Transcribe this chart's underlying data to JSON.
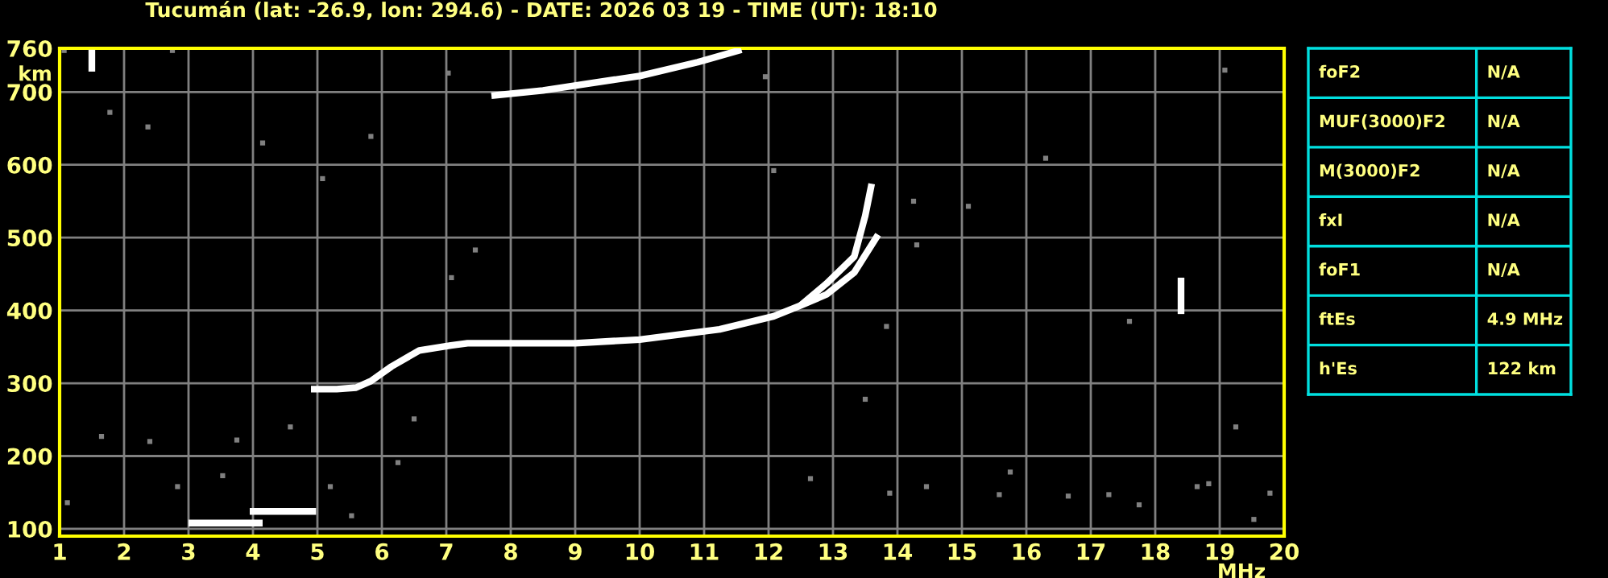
{
  "chart_data": [
    {
      "type": "line",
      "title": "Tucumán (lat: -26.9, lon: 294.6) - DATE: 2026 03 19 - TIME (UT): 18:10",
      "xlabel": "MHz",
      "ylabel": "km",
      "xlim": [
        1,
        20
      ],
      "ylim": [
        90,
        760
      ],
      "xticks": [
        1,
        2,
        3,
        4,
        5,
        6,
        7,
        8,
        9,
        10,
        11,
        12,
        13,
        14,
        15,
        16,
        17,
        18,
        19,
        20
      ],
      "yticks": [
        100,
        200,
        300,
        400,
        500,
        600,
        700,
        760
      ],
      "grid": true,
      "legend": false,
      "series": [
        {
          "color": "#ffffff",
          "x": [
            3.0,
            3.5,
            4.15
          ],
          "values": [
            108,
            108,
            108
          ]
        },
        {
          "color": "#ffffff",
          "x": [
            3.95,
            4.5,
            4.98
          ],
          "values": [
            124,
            124,
            124
          ]
        },
        {
          "color": "#ffffff",
          "x": [
            4.9,
            5.3,
            5.6,
            5.83,
            6.15,
            6.58,
            7.07,
            7.33,
            8.0,
            9.0,
            10.0,
            11.24,
            12.08,
            12.5,
            12.9,
            13.33,
            13.7
          ],
          "values": [
            292,
            292,
            294,
            303,
            323,
            345,
            352,
            355,
            355,
            355,
            360,
            374,
            392,
            407,
            422,
            452,
            504
          ]
        },
        {
          "color": "#ffffff",
          "x": [
            12.5,
            12.9,
            13.33,
            13.5,
            13.6
          ],
          "values": [
            407,
            437,
            474,
            530,
            574
          ]
        },
        {
          "color": "#ffffff",
          "x": [
            7.7,
            8.5,
            9.24,
            10.0,
            10.9,
            11.58
          ],
          "values": [
            695,
            702,
            712,
            722,
            741,
            758
          ]
        },
        {
          "color": "#ffffff",
          "x": [
            1.5,
            1.5
          ],
          "values": [
            728,
            758
          ]
        },
        {
          "color": "#ffffff",
          "x": [
            18.4,
            18.4
          ],
          "values": [
            395,
            445
          ]
        },
        {
          "type": "scatter",
          "marker": "square",
          "color": "#808080",
          "x": [
            1.07,
            2.75,
            1.78,
            2.37,
            4.15,
            5.83,
            7.03,
            11.95,
            12.08,
            5.08,
            7.08,
            7.45,
            14.25,
            14.3,
            13.83,
            13.5,
            12.65,
            13.88,
            6.5,
            6.25,
            5.2,
            1.65,
            2.4,
            3.75,
            4.58,
            1.12,
            2.83,
            3.53,
            5.53,
            14.45,
            15.58,
            16.65,
            17.28,
            17.75,
            18.65,
            18.83,
            19.53,
            19.78,
            15.75,
            19.25,
            19.08,
            16.3,
            17.6,
            15.1
          ],
          "values": [
            757,
            757,
            672,
            652,
            630,
            639,
            726,
            721,
            592,
            581,
            445,
            483,
            550,
            490,
            378,
            278,
            169,
            149,
            251,
            191,
            158,
            227,
            220,
            222,
            240,
            136,
            158,
            173,
            118,
            158,
            147,
            145,
            147,
            133,
            158,
            162,
            113,
            149,
            178,
            240,
            730,
            609,
            385,
            543
          ]
        }
      ]
    },
    {
      "type": "other",
      "annotations": [
        "foF2",
        "N/A",
        "MUF(3000)F2",
        "N/A",
        "M(3000)F2",
        "N/A",
        "fxI",
        "N/A",
        "foF1",
        "N/A",
        "ftEs",
        "4.9 MHz",
        "h'Es",
        "122 km"
      ]
    }
  ]
}
